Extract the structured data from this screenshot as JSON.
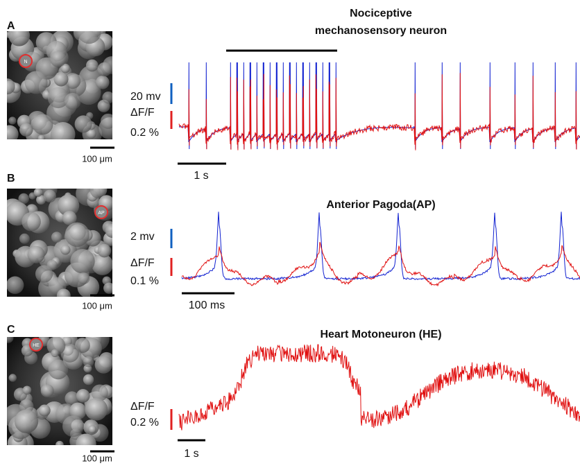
{
  "panels": [
    {
      "label": "A",
      "title_lines": [
        "Nociceptive",
        "mechanosensory neuron"
      ],
      "cell_label": "N",
      "image_scale": "100 μm",
      "voltage_scale": "20 mv",
      "fluorescence_label": "ΔF/F",
      "fluorescence_scale": "0.2 %",
      "time_scale": "1 s"
    },
    {
      "label": "B",
      "title_lines": [
        "Anterior Pagoda(AP)"
      ],
      "cell_label": "AP",
      "image_scale": "100 μm",
      "voltage_scale": "2 mv",
      "fluorescence_label": "ΔF/F",
      "fluorescence_scale": "0.1 %",
      "time_scale": "100 ms"
    },
    {
      "label": "C",
      "title_lines": [
        "Heart Motoneuron (HE)"
      ],
      "cell_label": "HE",
      "image_scale": "100 μm",
      "fluorescence_label": "ΔF/F",
      "fluorescence_scale": "0.2 %",
      "time_scale": "1 s"
    }
  ]
}
